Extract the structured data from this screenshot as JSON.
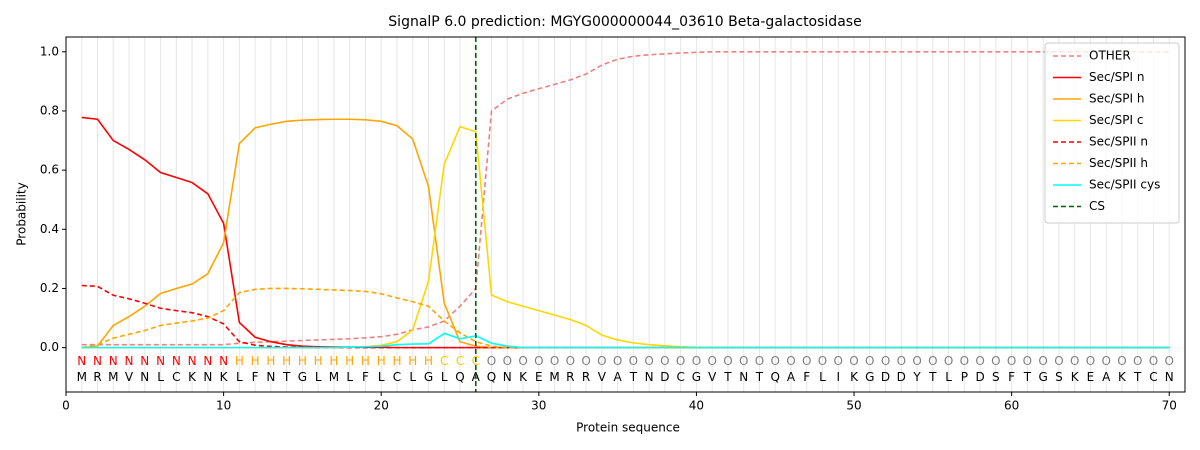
{
  "chart_data": {
    "type": "line",
    "title": "SignalP 6.0 prediction: MGYG000000044_03610 Beta-galactosidase",
    "x_label": "Protein sequence",
    "y_label": "Probability",
    "xlim": [
      0,
      71
    ],
    "ylim": [
      -0.15,
      1.05
    ],
    "xticks": [
      0,
      10,
      20,
      30,
      40,
      50,
      60,
      70
    ],
    "yticks": [
      {
        "value": 0,
        "label": "0.0"
      },
      0.2,
      0.4,
      0.6,
      0.8,
      {
        "value": 1,
        "label": "1.0"
      }
    ],
    "grid": true,
    "legend": "upper right",
    "x": [
      1,
      2,
      3,
      4,
      5,
      6,
      7,
      8,
      9,
      10,
      11,
      12,
      13,
      14,
      15,
      16,
      17,
      18,
      19,
      20,
      21,
      22,
      23,
      24,
      25,
      26,
      27,
      28,
      29,
      30,
      31,
      32,
      33,
      34,
      35,
      36,
      37,
      38,
      39,
      40,
      41,
      42,
      43,
      44,
      45,
      46,
      47,
      48,
      49,
      50,
      51,
      52,
      53,
      54,
      55,
      56,
      57,
      58,
      59,
      60,
      61,
      62,
      63,
      64,
      65,
      66,
      67,
      68,
      69,
      70
    ],
    "sequence": [
      "M",
      "R",
      "M",
      "V",
      "N",
      "L",
      "C",
      "K",
      "N",
      "K",
      "L",
      "F",
      "N",
      "T",
      "G",
      "L",
      "M",
      "L",
      "F",
      "L",
      "C",
      "L",
      "G",
      "L",
      "Q",
      "A",
      "Q",
      "N",
      "K",
      "E",
      "M",
      "R",
      "R",
      "V",
      "A",
      "T",
      "N",
      "D",
      "C",
      "G",
      "V",
      "T",
      "N",
      "T",
      "Q",
      "A",
      "F",
      "L",
      "I",
      "K",
      "G",
      "D",
      "D",
      "Y",
      "T",
      "L",
      "P",
      "D",
      "S",
      "F",
      "T",
      "G",
      "S",
      "K",
      "E",
      "A",
      "K",
      "T",
      "C",
      "N"
    ],
    "regions": [
      "N",
      "N",
      "N",
      "N",
      "N",
      "N",
      "N",
      "N",
      "N",
      "N",
      "H",
      "H",
      "H",
      "H",
      "H",
      "H",
      "H",
      "H",
      "H",
      "H",
      "H",
      "H",
      "H",
      "C",
      "C",
      "C",
      "O",
      "O",
      "O",
      "O",
      "O",
      "O",
      "O",
      "O",
      "O",
      "O",
      "O",
      "O",
      "O",
      "O",
      "O",
      "O",
      "O",
      "O",
      "O",
      "O",
      "O",
      "O",
      "O",
      "O",
      "O",
      "O",
      "O",
      "O",
      "O",
      "O",
      "O",
      "O",
      "O",
      "O",
      "O",
      "O",
      "O",
      "O",
      "O",
      "O",
      "O",
      "O",
      "O",
      "O"
    ],
    "region_colors": {
      "N": "#ff0000",
      "H": "#ffa500",
      "C": "#ffc800",
      "O": "#808080"
    },
    "series": [
      {
        "name": "OTHER",
        "color": "#f08080",
        "dashed": true,
        "values": [
          0.01,
          0.01,
          0.01,
          0.01,
          0.01,
          0.01,
          0.01,
          0.01,
          0.01,
          0.01,
          0.015,
          0.018,
          0.02,
          0.022,
          0.024,
          0.026,
          0.028,
          0.03,
          0.033,
          0.037,
          0.045,
          0.06,
          0.07,
          0.09,
          0.14,
          0.2,
          0.8,
          0.84,
          0.86,
          0.875,
          0.89,
          0.905,
          0.925,
          0.955,
          0.975,
          0.985,
          0.99,
          0.993,
          0.996,
          0.998,
          1,
          1,
          1,
          1,
          1,
          1,
          1,
          1,
          1,
          1,
          1,
          1,
          1,
          1,
          1,
          1,
          1,
          1,
          1,
          1,
          1,
          1,
          1,
          1,
          1,
          1,
          1,
          1,
          1,
          1
        ]
      },
      {
        "name": "Sec/SPI n",
        "color": "#ff0000",
        "dashed": false,
        "values": [
          0.778,
          0.772,
          0.7,
          0.67,
          0.635,
          0.592,
          0.575,
          0.558,
          0.52,
          0.42,
          0.085,
          0.035,
          0.02,
          0.01,
          0.005,
          0.003,
          0.002,
          0.002,
          0.001,
          0.001,
          0,
          0,
          0,
          0,
          0,
          0,
          0,
          0,
          0,
          0,
          0,
          0,
          0,
          0,
          0,
          0,
          0,
          0,
          0,
          0,
          0,
          0,
          0,
          0,
          0,
          0,
          0,
          0,
          0,
          0,
          0,
          0,
          0,
          0,
          0,
          0,
          0,
          0,
          0,
          0,
          0,
          0,
          0,
          0,
          0,
          0,
          0,
          0,
          0,
          0
        ]
      },
      {
        "name": "Sec/SPI h",
        "color": "#ffa500",
        "dashed": false,
        "values": [
          0,
          0.005,
          0.075,
          0.105,
          0.14,
          0.183,
          0.2,
          0.215,
          0.25,
          0.355,
          0.69,
          0.743,
          0.755,
          0.765,
          0.769,
          0.771,
          0.772,
          0.772,
          0.77,
          0.765,
          0.75,
          0.705,
          0.545,
          0.15,
          0.02,
          0.005,
          0,
          0,
          0,
          0,
          0,
          0,
          0,
          0,
          0,
          0,
          0,
          0,
          0,
          0,
          0,
          0,
          0,
          0,
          0,
          0,
          0,
          0,
          0,
          0,
          0,
          0,
          0,
          0,
          0,
          0,
          0,
          0,
          0,
          0,
          0,
          0,
          0,
          0,
          0,
          0,
          0,
          0,
          0,
          0
        ]
      },
      {
        "name": "Sec/SPI c",
        "color": "#ffd700",
        "dashed": false,
        "values": [
          0,
          0,
          0,
          0,
          0,
          0,
          0,
          0,
          0,
          0,
          0,
          0,
          0,
          0,
          0,
          0,
          0,
          0.001,
          0.003,
          0.008,
          0.02,
          0.06,
          0.225,
          0.62,
          0.747,
          0.73,
          0.178,
          0.155,
          0.14,
          0.125,
          0.11,
          0.095,
          0.075,
          0.042,
          0.026,
          0.016,
          0.01,
          0.006,
          0.003,
          0.001,
          0,
          0,
          0,
          0,
          0,
          0,
          0,
          0,
          0,
          0,
          0,
          0,
          0,
          0,
          0,
          0,
          0,
          0,
          0,
          0,
          0,
          0,
          0,
          0,
          0,
          0,
          0,
          0,
          0,
          0
        ]
      },
      {
        "name": "Sec/SPII n",
        "color": "#ff0000",
        "dashed": true,
        "values": [
          0.21,
          0.207,
          0.177,
          0.165,
          0.15,
          0.133,
          0.125,
          0.118,
          0.105,
          0.08,
          0.02,
          0.008,
          0.004,
          0.002,
          0.001,
          0,
          0,
          0,
          0,
          0,
          0,
          0,
          0,
          0,
          0,
          0,
          0,
          0,
          0,
          0,
          0,
          0,
          0,
          0,
          0,
          0,
          0,
          0,
          0,
          0,
          0,
          0,
          0,
          0,
          0,
          0,
          0,
          0,
          0,
          0,
          0,
          0,
          0,
          0,
          0,
          0,
          0,
          0,
          0,
          0,
          0,
          0,
          0,
          0,
          0,
          0,
          0,
          0,
          0,
          0
        ]
      },
      {
        "name": "Sec/SPII h",
        "color": "#ffa500",
        "dashed": true,
        "values": [
          0,
          0.01,
          0.032,
          0.045,
          0.058,
          0.075,
          0.083,
          0.09,
          0.1,
          0.125,
          0.186,
          0.197,
          0.2,
          0.2,
          0.199,
          0.197,
          0.195,
          0.193,
          0.19,
          0.182,
          0.168,
          0.155,
          0.14,
          0.09,
          0.05,
          0.02,
          0.005,
          0,
          0,
          0,
          0,
          0,
          0,
          0,
          0,
          0,
          0,
          0,
          0,
          0,
          0,
          0,
          0,
          0,
          0,
          0,
          0,
          0,
          0,
          0,
          0,
          0,
          0,
          0,
          0,
          0,
          0,
          0,
          0,
          0,
          0,
          0,
          0,
          0,
          0,
          0,
          0,
          0,
          0,
          0
        ]
      },
      {
        "name": "Sec/SPII cys",
        "color": "#00ffff",
        "dashed": false,
        "values": [
          0,
          0,
          0,
          0,
          0,
          0,
          0,
          0,
          0,
          0,
          0,
          0,
          0,
          0,
          0,
          0,
          0,
          0.002,
          0.003,
          0.005,
          0.01,
          0.012,
          0.013,
          0.048,
          0.03,
          0.04,
          0.015,
          0.005,
          0,
          0,
          0,
          0,
          0,
          0,
          0,
          0,
          0,
          0,
          0,
          0,
          0,
          0,
          0,
          0,
          0,
          0,
          0,
          0,
          0,
          0,
          0,
          0,
          0,
          0,
          0,
          0,
          0,
          0,
          0,
          0,
          0,
          0,
          0,
          0,
          0,
          0,
          0,
          0,
          0,
          0
        ]
      }
    ],
    "cleavage_site": {
      "name": "CS",
      "x": 26,
      "color": "#006400"
    }
  }
}
